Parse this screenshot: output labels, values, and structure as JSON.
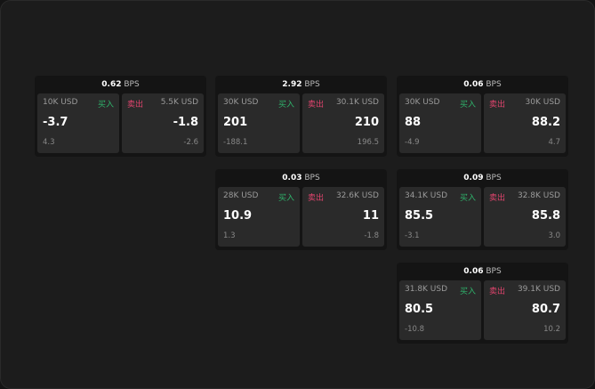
{
  "buy_label": "买入",
  "sell_label": "卖出",
  "unit": "BPS",
  "colors": {
    "buy": "#2fb36b",
    "sell": "#e0446d"
  },
  "cards": [
    {
      "spread": "0.62",
      "bid": {
        "size": "10K USD",
        "price": "-3.7",
        "change": "4.3"
      },
      "ask": {
        "size": "5.5K USD",
        "price": "-1.8",
        "change": "-2.6"
      }
    },
    {
      "spread": "2.92",
      "bid": {
        "size": "30K USD",
        "price": "201",
        "change": "-188.1"
      },
      "ask": {
        "size": "30.1K USD",
        "price": "210",
        "change": "196.5"
      }
    },
    {
      "spread": "0.06",
      "bid": {
        "size": "30K USD",
        "price": "88",
        "change": "-4.9"
      },
      "ask": {
        "size": "30K USD",
        "price": "88.2",
        "change": "4.7"
      }
    },
    {
      "spread": "0.03",
      "bid": {
        "size": "28K USD",
        "price": "10.9",
        "change": "1.3"
      },
      "ask": {
        "size": "32.6K USD",
        "price": "11",
        "change": "-1.8"
      }
    },
    {
      "spread": "0.09",
      "bid": {
        "size": "34.1K USD",
        "price": "85.5",
        "change": "-3.1"
      },
      "ask": {
        "size": "32.8K USD",
        "price": "85.8",
        "change": "3.0"
      }
    },
    {
      "spread": "0.06",
      "bid": {
        "size": "31.8K USD",
        "price": "80.5",
        "change": "-10.8"
      },
      "ask": {
        "size": "39.1K USD",
        "price": "80.7",
        "change": "10.2"
      }
    }
  ]
}
